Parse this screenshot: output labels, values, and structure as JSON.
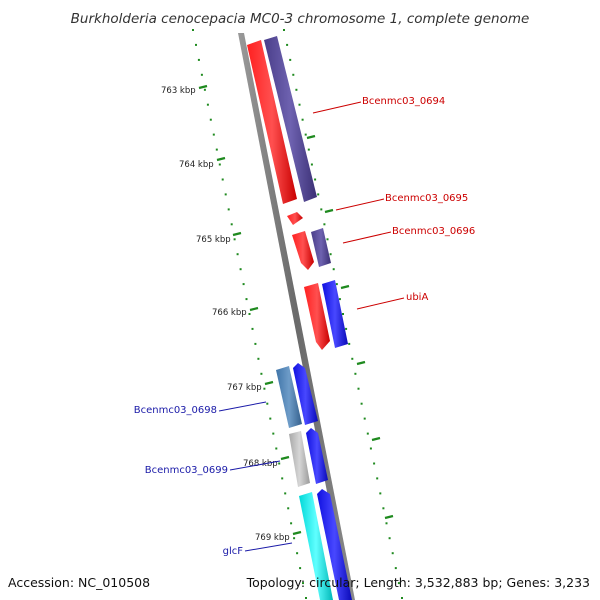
{
  "title": "Burkholderia cenocepacia MC0-3 chromosome 1, complete genome",
  "footer": {
    "accession": "Accession: NC_010508",
    "topology": "Topology: circular; Length: 3,532,883 bp; Genes: 3,233"
  },
  "colors": {
    "backbone": "#7a7a7a",
    "tick": "#1f8a1f",
    "label_red": "#cc0000",
    "label_blue": "#1a1aa8"
  },
  "kbp_ticks": [
    "763 kbp",
    "764 kbp",
    "765 kbp",
    "766 kbp",
    "767 kbp",
    "768 kbp",
    "769 kbp"
  ],
  "gene_labels": [
    {
      "id": "lbl-0694",
      "text": "Bcenmc03_0694",
      "color": "#cc0000"
    },
    {
      "id": "lbl-0695",
      "text": "Bcenmc03_0695",
      "color": "#cc0000"
    },
    {
      "id": "lbl-0696",
      "text": "Bcenmc03_0696",
      "color": "#cc0000"
    },
    {
      "id": "lbl-ubia",
      "text": "ubiA",
      "color": "#cc0000"
    },
    {
      "id": "lbl-0698",
      "text": "Bcenmc03_0698",
      "color": "#1a1aa8"
    },
    {
      "id": "lbl-0699",
      "text": "Bcenmc03_0699",
      "color": "#1a1aa8"
    },
    {
      "id": "lbl-glcf",
      "text": "glcF",
      "color": "#1a1aa8"
    }
  ]
}
